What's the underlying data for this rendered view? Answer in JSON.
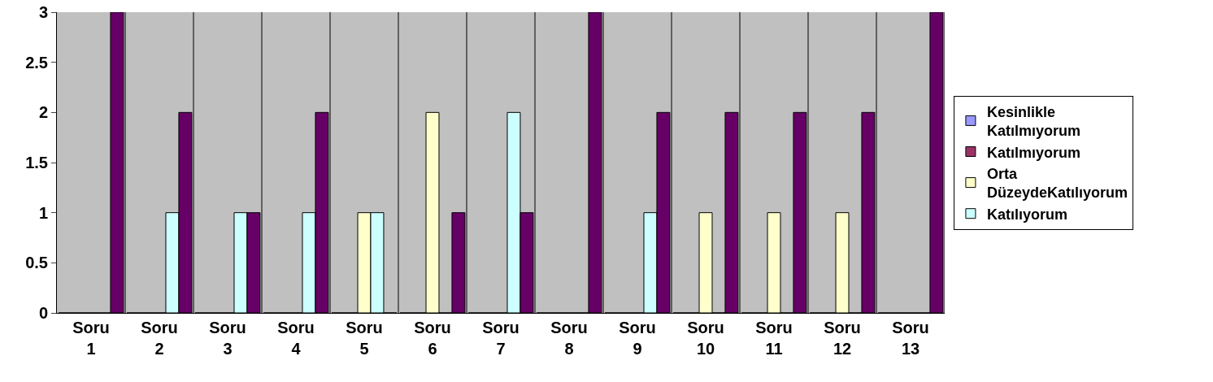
{
  "chart_data": {
    "type": "bar",
    "categories": [
      "Soru 1",
      "Soru 2",
      "Soru 3",
      "Soru 4",
      "Soru 5",
      "Soru 6",
      "Soru 7",
      "Soru 8",
      "Soru 9",
      "Soru 10",
      "Soru 11",
      "Soru 12",
      "Soru 13"
    ],
    "series": [
      {
        "name": "Kesinlikle Katılmıyorum",
        "color": "#9999ff",
        "values": [
          0,
          0,
          0,
          0,
          0,
          0,
          0,
          0,
          0,
          0,
          0,
          0,
          0
        ]
      },
      {
        "name": "Katılmıyorum",
        "color": "#993366",
        "values": [
          0,
          0,
          0,
          0,
          0,
          0,
          0,
          0,
          0,
          0,
          0,
          0,
          0
        ]
      },
      {
        "name": "Orta DüzeydeKatılıyorum",
        "color": "#ffffcc",
        "values": [
          0,
          0,
          0,
          0,
          1,
          2,
          0,
          0,
          0,
          1,
          1,
          1,
          0
        ]
      },
      {
        "name": "Katılıyorum",
        "color": "#ccffff",
        "values": [
          0,
          1,
          1,
          1,
          1,
          0,
          2,
          0,
          1,
          0,
          0,
          0,
          0
        ]
      },
      {
        "color": "#660066",
        "values": [
          3,
          2,
          1,
          2,
          0,
          1,
          1,
          3,
          2,
          2,
          2,
          2,
          3
        ]
      }
    ],
    "ylim": [
      0,
      3
    ],
    "yticks": [
      0,
      0.5,
      1,
      1.5,
      2,
      2.5,
      3
    ],
    "grid": "x",
    "legend": "right"
  }
}
